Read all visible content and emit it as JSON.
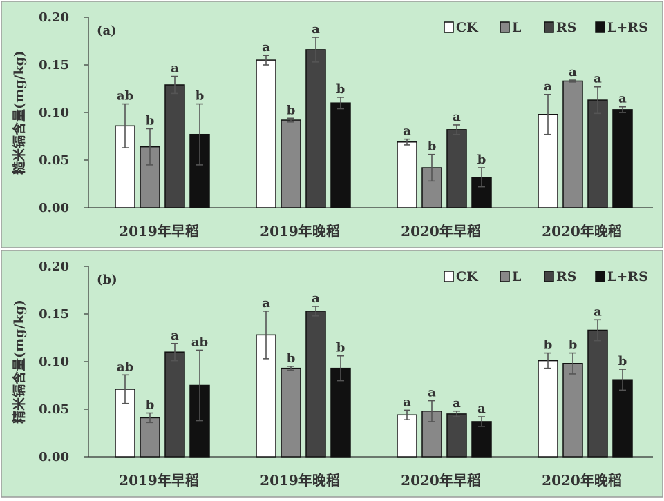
{
  "colors": {
    "panel_bg": "#c9ebcf",
    "panel_border": "#9a9a9a",
    "text": "#333333",
    "axis": "#333333",
    "error_bar": "#555555",
    "series": [
      "#ffffff",
      "#888888",
      "#444444",
      "#111111"
    ]
  },
  "chart_data": [
    {
      "type": "bar",
      "panel_label": "(a)",
      "ylabel": "糙米镉含量(mg/kg)",
      "xlabel": "",
      "ylim": [
        0,
        0.2
      ],
      "yticks": [
        "0.00",
        "0.05",
        "0.10",
        "0.15",
        "0.20"
      ],
      "grid": false,
      "legend_position": "top-right",
      "categories": [
        "2019年早稻",
        "2019年晚稻",
        "2020年早稻",
        "2020年晚稻"
      ],
      "series": [
        {
          "name": "CK",
          "values": [
            0.086,
            0.155,
            0.069,
            0.098
          ],
          "errors": [
            0.023,
            0.005,
            0.003,
            0.021
          ],
          "letters": [
            "ab",
            "a",
            "a",
            "a"
          ]
        },
        {
          "name": "L",
          "values": [
            0.064,
            0.092,
            0.042,
            0.133
          ],
          "errors": [
            0.019,
            0.002,
            0.014,
            0.001
          ],
          "letters": [
            "b",
            "b",
            "b",
            "a"
          ]
        },
        {
          "name": "RS",
          "values": [
            0.129,
            0.166,
            0.082,
            0.113
          ],
          "errors": [
            0.009,
            0.013,
            0.005,
            0.014
          ],
          "letters": [
            "a",
            "a",
            "a",
            "a"
          ]
        },
        {
          "name": "L+RS",
          "values": [
            0.077,
            0.11,
            0.032,
            0.103
          ],
          "errors": [
            0.032,
            0.006,
            0.01,
            0.003
          ],
          "letters": [
            "b",
            "b",
            "b",
            "a"
          ]
        }
      ]
    },
    {
      "type": "bar",
      "panel_label": "(b)",
      "ylabel": "精米镉含量(mg/kg)",
      "xlabel": "",
      "ylim": [
        0,
        0.2
      ],
      "yticks": [
        "0.00",
        "0.05",
        "0.10",
        "0.15",
        "0.20"
      ],
      "grid": false,
      "legend_position": "top-right",
      "categories": [
        "2019年早稻",
        "2019年晚稻",
        "2020年早稻",
        "2020年晚稻"
      ],
      "series": [
        {
          "name": "CK",
          "values": [
            0.071,
            0.128,
            0.044,
            0.101
          ],
          "errors": [
            0.015,
            0.025,
            0.005,
            0.008
          ],
          "letters": [
            "ab",
            "a",
            "a",
            "b"
          ]
        },
        {
          "name": "L",
          "values": [
            0.041,
            0.093,
            0.048,
            0.098
          ],
          "errors": [
            0.005,
            0.002,
            0.011,
            0.011
          ],
          "letters": [
            "b",
            "b",
            "a",
            "b"
          ]
        },
        {
          "name": "RS",
          "values": [
            0.11,
            0.153,
            0.045,
            0.133
          ],
          "errors": [
            0.009,
            0.005,
            0.003,
            0.011
          ],
          "letters": [
            "a",
            "a",
            "a",
            "a"
          ]
        },
        {
          "name": "L+RS",
          "values": [
            0.075,
            0.093,
            0.037,
            0.081
          ],
          "errors": [
            0.037,
            0.013,
            0.005,
            0.011
          ],
          "letters": [
            "ab",
            "b",
            "a",
            "b"
          ]
        }
      ]
    }
  ]
}
